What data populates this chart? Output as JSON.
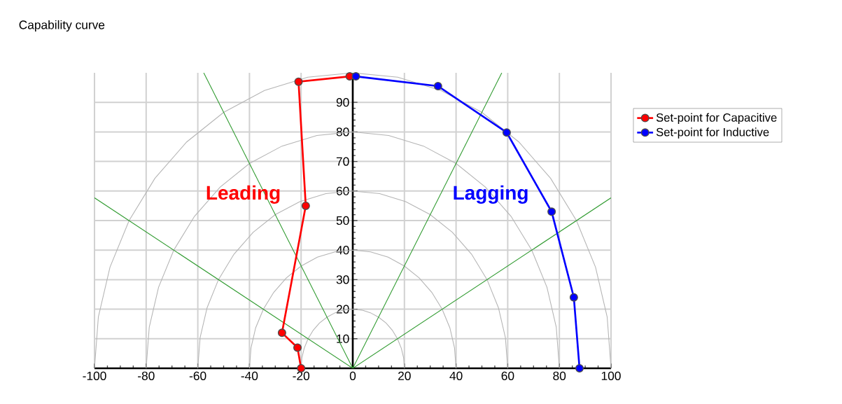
{
  "chart_data": {
    "type": "line",
    "title": "Capability curve",
    "xlim": [
      -100,
      100
    ],
    "ylim": [
      0,
      100
    ],
    "xticks": [
      -100,
      -80,
      -60,
      -40,
      -20,
      0,
      20,
      40,
      60,
      80,
      100
    ],
    "yticks": [
      10,
      20,
      30,
      40,
      50,
      60,
      70,
      80,
      90
    ],
    "grid": true,
    "legend": "right",
    "annotations": [
      "Leading",
      "Lagging"
    ],
    "series": [
      {
        "color": "#b4b4b4",
        "marker": "none",
        "x": [
          100,
          98.5,
          94,
          86.6,
          76.6,
          64.3,
          50,
          34.2,
          17.4,
          0,
          -17.4,
          -34.2,
          -50,
          -64.3,
          -76.6,
          -86.6,
          -94,
          -98.5,
          -100
        ],
        "values": [
          0,
          17.4,
          34.2,
          50,
          64.3,
          76.6,
          86.6,
          94,
          98.5,
          100,
          98.5,
          94,
          86.6,
          76.6,
          64.3,
          50,
          34.2,
          17.4,
          0
        ]
      },
      {
        "color": "#b4b4b4",
        "marker": "none",
        "x": [
          80,
          78.8,
          75.2,
          69.3,
          61.3,
          51.4,
          40,
          27.4,
          13.9,
          0,
          -13.9,
          -27.4,
          -40,
          -51.4,
          -61.3,
          -69.3,
          -75.2,
          -78.8,
          -80
        ],
        "values": [
          0,
          13.9,
          27.4,
          40,
          51.4,
          61.3,
          69.3,
          75.2,
          78.8,
          80,
          78.8,
          75.2,
          69.3,
          61.3,
          51.4,
          40,
          27.4,
          13.9,
          0
        ]
      },
      {
        "color": "#b4b4b4",
        "marker": "none",
        "x": [
          60,
          59.1,
          56.4,
          52,
          46,
          38.6,
          30,
          20.5,
          10.4,
          0,
          -10.4,
          -20.5,
          -30,
          -38.6,
          -46,
          -52,
          -56.4,
          -59.1,
          -60
        ],
        "values": [
          0,
          10.4,
          20.5,
          30,
          38.6,
          46,
          52,
          56.4,
          59.1,
          60,
          59.1,
          56.4,
          52,
          46,
          38.6,
          30,
          20.5,
          10.4,
          0
        ]
      },
      {
        "color": "#b4b4b4",
        "marker": "none",
        "x": [
          40,
          39.4,
          37.6,
          34.6,
          30.6,
          25.7,
          20,
          13.7,
          6.9,
          0,
          -6.9,
          -13.7,
          -20,
          -25.7,
          -30.6,
          -34.6,
          -37.6,
          -39.4,
          -40
        ],
        "values": [
          0,
          6.9,
          13.7,
          20,
          25.7,
          30.6,
          34.6,
          37.6,
          39.4,
          40,
          39.4,
          37.6,
          34.6,
          30.6,
          25.7,
          20,
          13.7,
          6.9,
          0
        ]
      },
      {
        "color": "#b4b4b4",
        "marker": "none",
        "x": [
          20,
          19.7,
          18.8,
          17.3,
          15.3,
          12.9,
          10,
          6.8,
          3.5,
          0,
          -3.5,
          -6.8,
          -10,
          -12.9,
          -15.3,
          -17.3,
          -18.8,
          -19.7,
          -20
        ],
        "values": [
          0,
          3.5,
          6.8,
          10,
          12.9,
          15.3,
          17.3,
          18.8,
          19.7,
          20,
          19.7,
          18.8,
          17.3,
          15.3,
          12.9,
          10,
          6.8,
          3.5,
          0
        ]
      },
      {
        "color": "#2e9a2e",
        "marker": "none",
        "x": [
          0,
          -57.7
        ],
        "values": [
          0,
          100
        ]
      },
      {
        "color": "#2e9a2e",
        "marker": "none",
        "x": [
          0,
          -100
        ],
        "values": [
          0,
          57.7
        ]
      },
      {
        "color": "#2e9a2e",
        "marker": "none",
        "x": [
          0,
          57.7
        ],
        "values": [
          0,
          100
        ]
      },
      {
        "color": "#2e9a2e",
        "marker": "none",
        "x": [
          0,
          100
        ],
        "values": [
          0,
          57.7
        ]
      },
      {
        "name": "Set-point for Capacitive",
        "color": "#ff0000",
        "marker": "circle",
        "x": [
          -20,
          -21.4,
          -27.4,
          -18.2,
          -21,
          -1.2
        ],
        "values": [
          0,
          7,
          12,
          55,
          97,
          98.8
        ]
      },
      {
        "name": "Set-point for Inductive",
        "color": "#0000ff",
        "marker": "circle",
        "x": [
          1.2,
          33,
          59.6,
          77,
          85.6,
          87.8
        ],
        "values": [
          98.8,
          95.5,
          79.8,
          53,
          24,
          0
        ]
      }
    ]
  }
}
